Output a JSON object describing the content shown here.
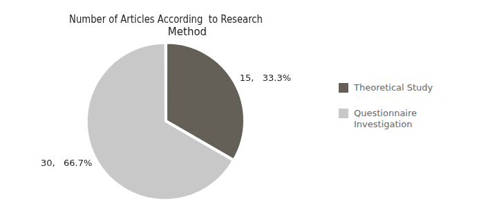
{
  "chart_data": {
    "type": "pie",
    "title": "Number of Articles According  to Research\n             Method",
    "categories": [
      "Theoretical Study",
      "Questionnaire\nInvestigation"
    ],
    "values": [
      15,
      30
    ],
    "value_labels": [
      "15,   33.3%",
      "30,   66.7%"
    ],
    "data_labels": true,
    "colors": [
      "#656057",
      "#c8c8c8"
    ],
    "legend": "right"
  }
}
